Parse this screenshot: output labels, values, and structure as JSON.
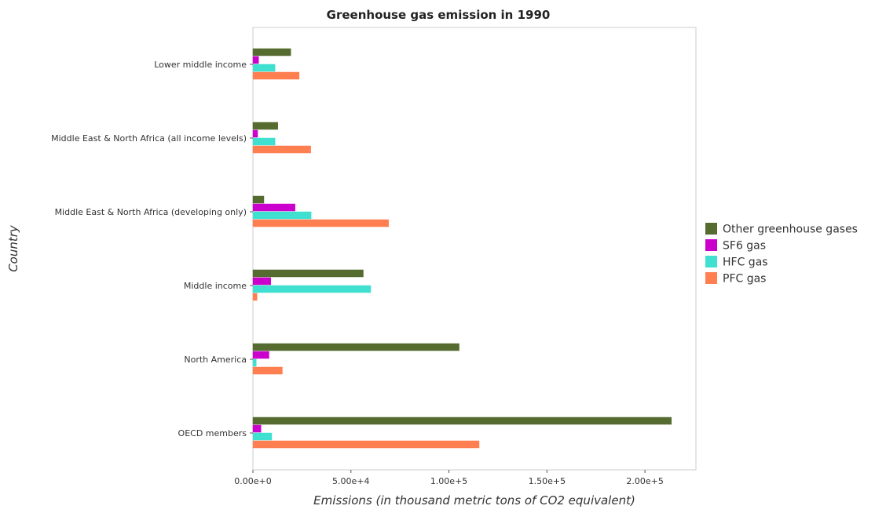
{
  "chart_data": {
    "type": "bar",
    "orientation": "horizontal",
    "title": "Greenhouse gas emission in 1990",
    "xlabel": "Emissions (in thousand metric tons of CO2 equivalent)",
    "ylabel": "Country",
    "xlim": [
      0,
      226000
    ],
    "xticks": [
      0,
      50000,
      100000,
      150000,
      200000
    ],
    "xtick_labels": [
      "0.00e+0",
      "5.00e+4",
      "1.00e+5",
      "1.50e+5",
      "2.00e+5"
    ],
    "grid": false,
    "legend_position": "right",
    "categories": [
      "Lower middle income",
      "Middle East & North Africa (all income levels)",
      "Middle East & North Africa (developing only)",
      "Middle income",
      "North America",
      "OECD members"
    ],
    "series": [
      {
        "name": "Other greenhouse gases",
        "color": "#556b2f",
        "values": [
          19300,
          12700,
          5600,
          56300,
          105200,
          213500
        ]
      },
      {
        "name": "SF6 gas",
        "color": "#cc00cc",
        "values": [
          2900,
          2400,
          21500,
          9100,
          8200,
          4100
        ]
      },
      {
        "name": "HFC gas",
        "color": "#40e0d0",
        "values": [
          11300,
          11300,
          29700,
          60100,
          1700,
          9600
        ]
      },
      {
        "name": "PFC gas",
        "color": "#ff7f50",
        "values": [
          23600,
          29500,
          69200,
          2100,
          15000,
          115400
        ]
      }
    ]
  }
}
